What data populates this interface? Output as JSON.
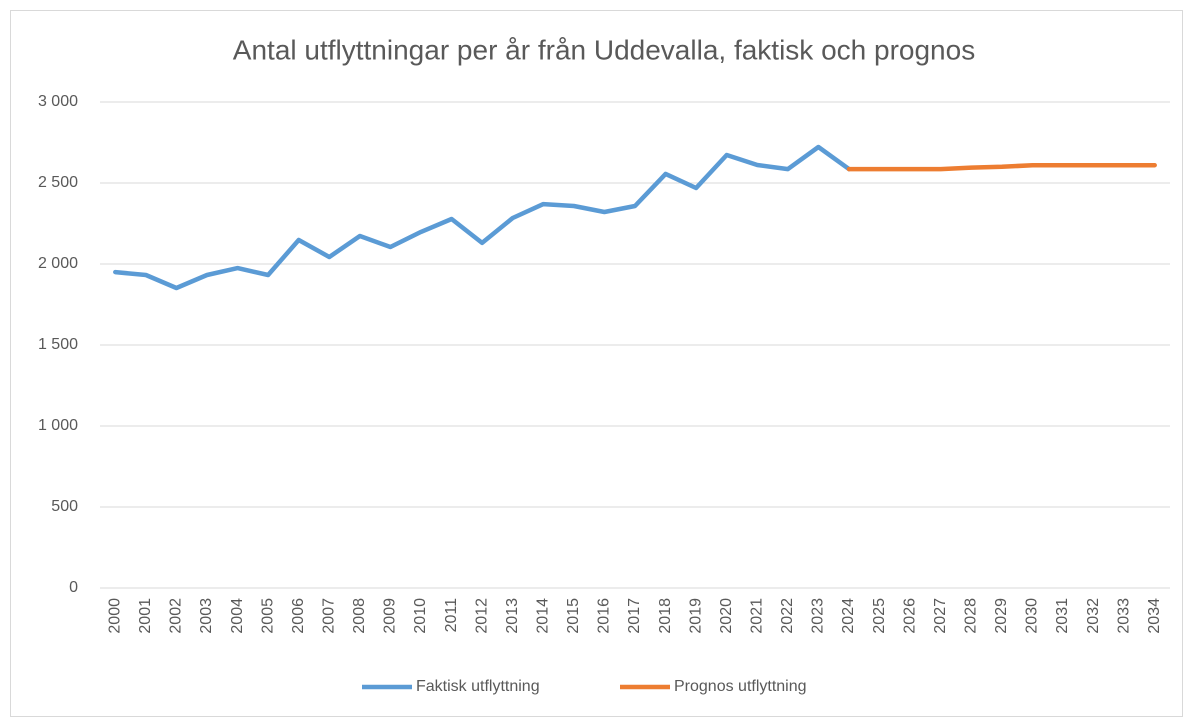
{
  "chart_data": {
    "type": "line",
    "title": "Antal utflyttningar per år från Uddevalla, faktisk och prognos",
    "categories": [
      "2000",
      "2001",
      "2002",
      "2003",
      "2004",
      "2005",
      "2006",
      "2007",
      "2008",
      "2009",
      "2010",
      "2011",
      "2012",
      "2013",
      "2014",
      "2015",
      "2016",
      "2017",
      "2018",
      "2019",
      "2020",
      "2021",
      "2022",
      "2023",
      "2024",
      "2025",
      "2026",
      "2027",
      "2028",
      "2029",
      "2030",
      "2031",
      "2032",
      "2033",
      "2034"
    ],
    "series": [
      {
        "name": "Faktisk utflyttning",
        "color": "#5b9bd5",
        "values": [
          1950,
          1932,
          1852,
          1932,
          1975,
          1932,
          2148,
          2043,
          2173,
          2105,
          2198,
          2278,
          2130,
          2284,
          2370,
          2358,
          2321,
          2358,
          2556,
          2469,
          2673,
          2611,
          2586,
          2722,
          2586,
          null,
          null,
          null,
          null,
          null,
          null,
          null,
          null,
          null,
          null
        ]
      },
      {
        "name": "Prognos utflyttning",
        "color": "#ed7d31",
        "values": [
          null,
          null,
          null,
          null,
          null,
          null,
          null,
          null,
          null,
          null,
          null,
          null,
          null,
          null,
          null,
          null,
          null,
          null,
          null,
          null,
          null,
          null,
          null,
          null,
          2586,
          2586,
          2586,
          2586,
          2595,
          2600,
          2610,
          2610,
          2610,
          2610,
          2610
        ]
      }
    ],
    "ylim": [
      0,
      3000
    ],
    "yticks": [
      0,
      500,
      {
        "value": 1000,
        "label": "1 000"
      },
      {
        "value": 1500,
        "label": "1 500"
      },
      {
        "value": 2000,
        "label": "2 000"
      },
      {
        "value": 2500,
        "label": "2 500"
      },
      {
        "value": 3000,
        "label": "3 000"
      }
    ],
    "grid": true
  }
}
